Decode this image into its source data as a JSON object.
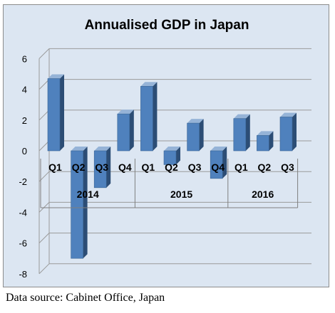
{
  "chart_data": {
    "type": "bar",
    "title": "Annualised GDP in Japan",
    "categories": [
      "Q1",
      "Q2",
      "Q3",
      "Q4",
      "Q1",
      "Q2",
      "Q3",
      "Q4",
      "Q1",
      "Q2",
      "Q3"
    ],
    "groups": [
      {
        "label": "2014",
        "count": 4
      },
      {
        "label": "2015",
        "count": 4
      },
      {
        "label": "2016",
        "count": 3
      }
    ],
    "values": [
      4.7,
      -7.0,
      -2.4,
      2.4,
      4.2,
      -0.9,
      1.8,
      -1.8,
      2.1,
      1.0,
      2.2
    ],
    "yticks": [
      6,
      4,
      2,
      0,
      -2,
      -4,
      -6,
      -8
    ],
    "ylim": [
      -8,
      6
    ],
    "xlabel": "",
    "ylabel": "",
    "grid": true,
    "bar_color": "#4f81bd",
    "bar_side_color": "#2c4d75",
    "bar_top_color": "#95b3d7"
  },
  "source": "Data source: Cabinet Office, Japan"
}
